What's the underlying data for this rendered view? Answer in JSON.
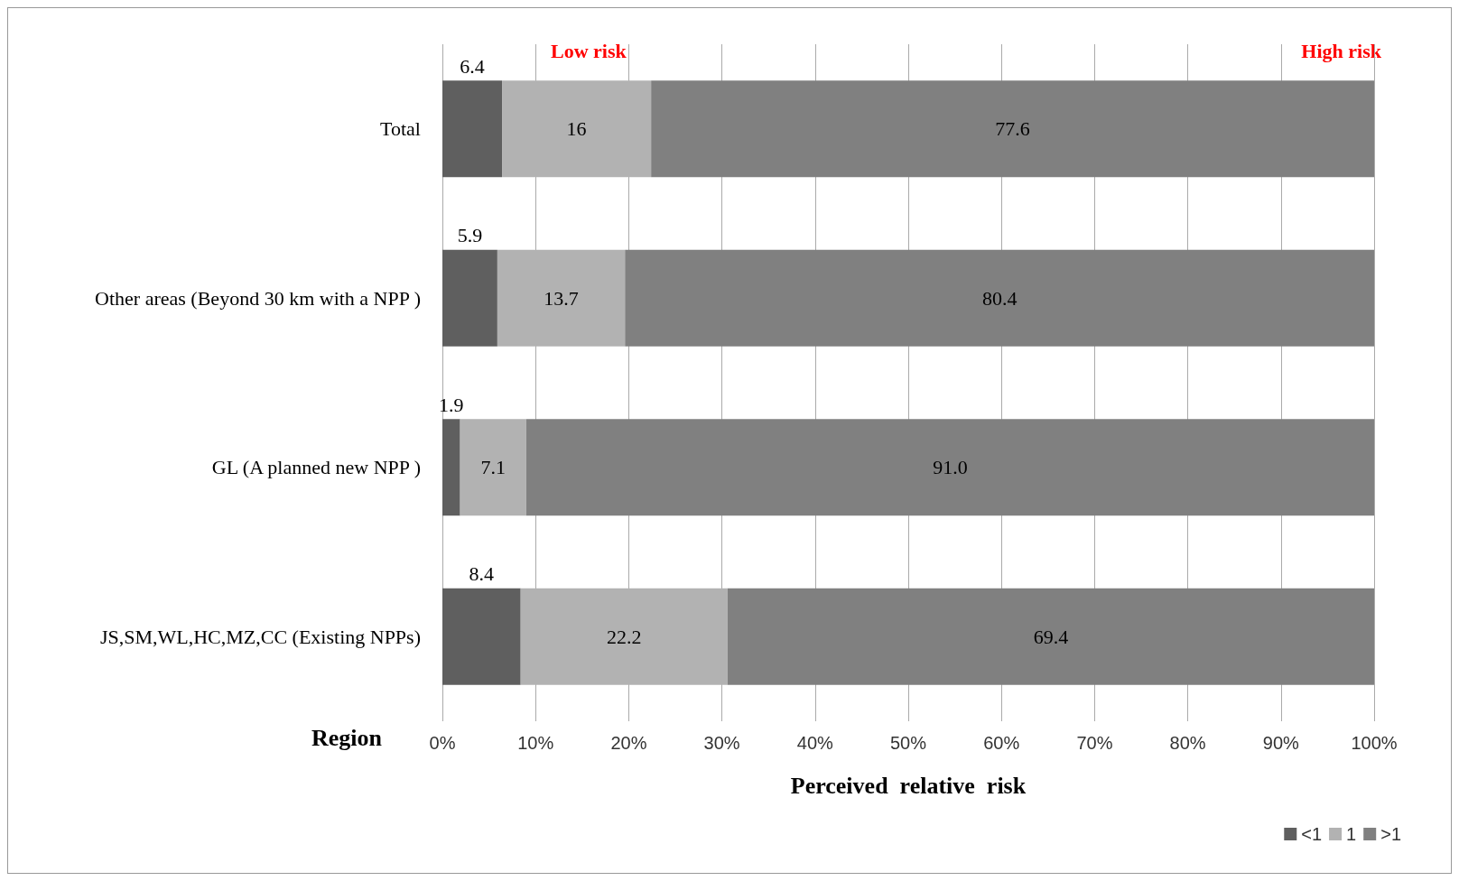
{
  "chart_data": {
    "type": "bar",
    "orientation": "horizontal",
    "stacked": true,
    "ylabel": "Region",
    "xlabel": "Perceived  relative  risk",
    "categories": [
      "Total",
      "Other areas (Beyond 30 km with a NPP )",
      "GL (A planned new NPP )",
      "JS,SM,WL,HC,MZ,CC (Existing NPPs)"
    ],
    "series": [
      {
        "name": "<1",
        "color": "#5f5f5f",
        "values": [
          6.4,
          5.9,
          1.9,
          8.4
        ],
        "value_labels": [
          "6.4",
          "5.9",
          "1.9",
          "8.4"
        ]
      },
      {
        "name": "1",
        "color": "#b2b2b2",
        "values": [
          16,
          13.7,
          7.1,
          22.2
        ],
        "value_labels": [
          "16",
          "13.7",
          "7.1",
          "22.2"
        ]
      },
      {
        "name": ">1",
        "color": "#808080",
        "values": [
          77.6,
          80.4,
          91.0,
          69.4
        ],
        "value_labels": [
          "77.6",
          "80.4",
          "91.0",
          "69.4"
        ]
      }
    ],
    "xlim": [
      0,
      100
    ],
    "xticks": [
      {
        "value": 0,
        "label": "0%"
      },
      {
        "value": 10,
        "label": "10%"
      },
      {
        "value": 20,
        "label": "20%"
      },
      {
        "value": 30,
        "label": "30%"
      },
      {
        "value": 40,
        "label": "40%"
      },
      {
        "value": 50,
        "label": "50%"
      },
      {
        "value": 60,
        "label": "60%"
      },
      {
        "value": 70,
        "label": "70%"
      },
      {
        "value": 80,
        "label": "80%"
      },
      {
        "value": 90,
        "label": "90%"
      },
      {
        "value": 100,
        "label": "100%"
      }
    ],
    "annotations": [
      "Low risk",
      "High risk"
    ],
    "grid": "x",
    "legend": "bottom right"
  }
}
